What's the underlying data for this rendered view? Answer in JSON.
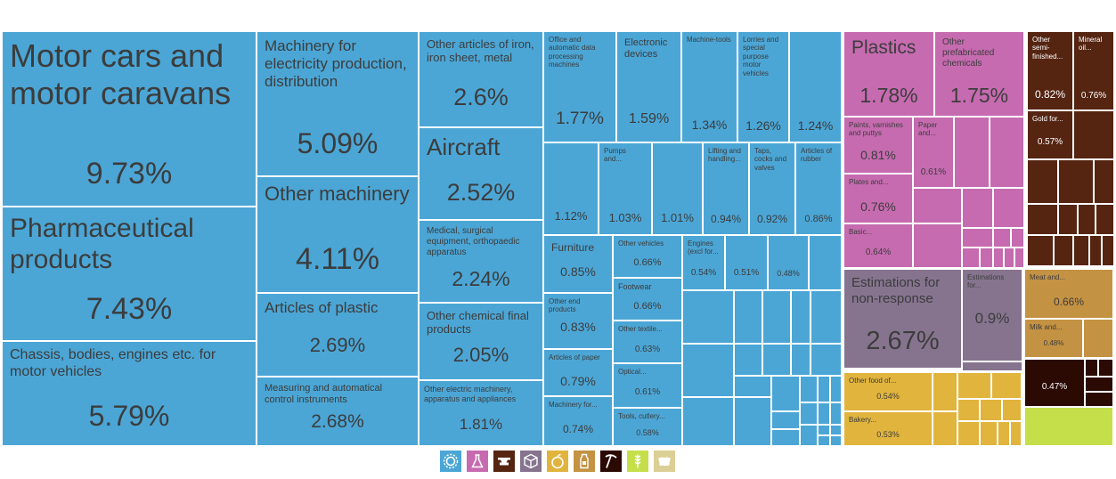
{
  "chart_data": {
    "type": "treemap",
    "colors": {
      "machinery": "#4ba6d6",
      "chemicals": "#c66bb0",
      "metals": "#552512",
      "misc": "#86748f",
      "foodstuffs": "#e1b43d",
      "animal": "#c49243",
      "minerals": "#2b0a04",
      "vegetable": "#c5df4a",
      "hides": "#dccf95"
    },
    "tiles": [
      {
        "label": "Motor cars and motor caravans",
        "value": "9.73%"
      },
      {
        "label": "Pharmaceutical products",
        "value": "7.43%"
      },
      {
        "label": "Chassis, bodies, engines etc. for motor vehicles",
        "value": "5.79%"
      },
      {
        "label": "Machinery for electricity production, distribution",
        "value": "5.09%"
      },
      {
        "label": "Other machinery",
        "value": "4.11%"
      },
      {
        "label": "Articles of plastic",
        "value": "2.69%"
      },
      {
        "label": "Measuring and automatical control instruments",
        "value": "2.68%"
      },
      {
        "label": "Other articles of iron, iron sheet, metal",
        "value": "2.6%"
      },
      {
        "label": "Aircraft",
        "value": "2.52%"
      },
      {
        "label": "Medical, surgical equipment, orthopaedic apparatus",
        "value": "2.24%"
      },
      {
        "label": "Other chemical final products",
        "value": "2.05%"
      },
      {
        "label": "Other electric machinery, apparatus and appliances",
        "value": "1.81%"
      },
      {
        "label": "Office and automatic data processing machines",
        "value": "1.77%"
      },
      {
        "label": "Electronic devices",
        "value": "1.59%"
      },
      {
        "label": "Machine-tools",
        "value": "1.34%"
      },
      {
        "label": "Lorries and special purpose motor vehicles",
        "value": "1.26%"
      },
      {
        "label": "",
        "value": "1.24%"
      },
      {
        "label": "",
        "value": "1.12%"
      },
      {
        "label": "Pumps and...",
        "value": "1.03%"
      },
      {
        "label": "",
        "value": "1.01%"
      },
      {
        "label": "Lifting and handling...",
        "value": "0.94%"
      },
      {
        "label": "Taps, cocks and valves",
        "value": "0.92%"
      },
      {
        "label": "Articles of rubber",
        "value": "0.86%"
      },
      {
        "label": "Furniture",
        "value": "0.85%"
      },
      {
        "label": "Other vehicles",
        "value": "0.66%"
      },
      {
        "label": "Engines (excl for...",
        "value": "0.54%"
      },
      {
        "label": "",
        "value": "0.51%"
      },
      {
        "label": "",
        "value": "0.48%"
      },
      {
        "label": "Other end products",
        "value": "0.83%"
      },
      {
        "label": "Footwear",
        "value": "0.66%"
      },
      {
        "label": "Other textile...",
        "value": "0.63%"
      },
      {
        "label": "Articles of paper",
        "value": "0.79%"
      },
      {
        "label": "Optical...",
        "value": "0.61%"
      },
      {
        "label": "Machinery for...",
        "value": "0.74%"
      },
      {
        "label": "Tools, cutlery...",
        "value": "0.58%"
      },
      {
        "label": "Plastics",
        "value": "1.78%"
      },
      {
        "label": "Other prefabricated chemicals",
        "value": "1.75%"
      },
      {
        "label": "Paints, varnishes and puttys",
        "value": "0.81%"
      },
      {
        "label": "Paper and...",
        "value": "0.61%"
      },
      {
        "label": "Plates and...",
        "value": "0.76%"
      },
      {
        "label": "Basic...",
        "value": "0.64%"
      },
      {
        "label": "Other semi-finished...",
        "value": "0.82%"
      },
      {
        "label": "Mineral oil...",
        "value": "0.76%"
      },
      {
        "label": "Gold for...",
        "value": "0.57%"
      },
      {
        "label": "Estimations for non-response",
        "value": "2.67%"
      },
      {
        "label": "Estimations for...",
        "value": "0.9%"
      },
      {
        "label": "Meat and...",
        "value": "0.66%"
      },
      {
        "label": "Milk and...",
        "value": "0.48%"
      },
      {
        "label": "",
        "value": "0.47%"
      },
      {
        "label": "Other food of...",
        "value": "0.54%"
      },
      {
        "label": "Bakery...",
        "value": "0.53%"
      }
    ],
    "legend": [
      {
        "category": "machinery",
        "icon": "gear-icon"
      },
      {
        "category": "chemicals",
        "icon": "flask-icon"
      },
      {
        "category": "metals",
        "icon": "anvil-icon"
      },
      {
        "category": "misc",
        "icon": "box-icon"
      },
      {
        "category": "foodstuffs",
        "icon": "fruit-icon"
      },
      {
        "category": "animal",
        "icon": "milk-icon"
      },
      {
        "category": "minerals",
        "icon": "pickaxe-icon"
      },
      {
        "category": "vegetable",
        "icon": "wheat-icon"
      },
      {
        "category": "hides",
        "icon": "hide-icon"
      }
    ]
  }
}
